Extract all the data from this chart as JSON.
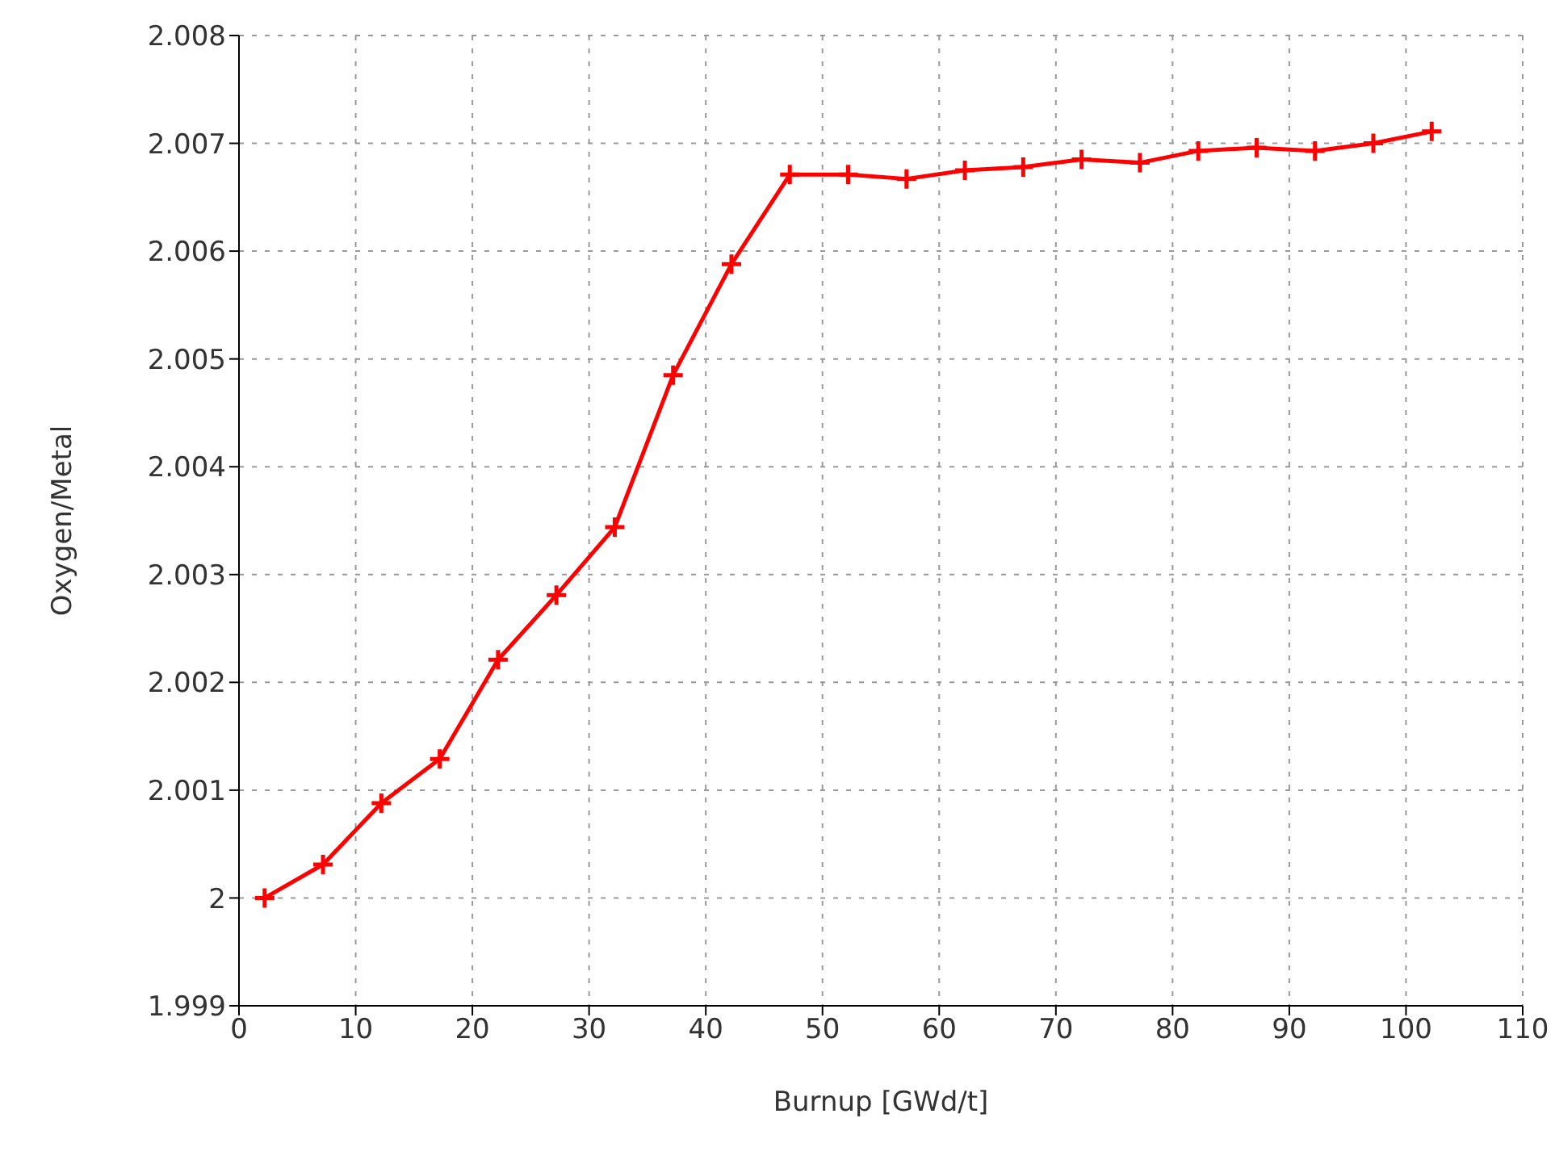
{
  "chart_data": {
    "type": "line",
    "xlabel": "Burnup [GWd/t]",
    "ylabel": "Oxygen/Metal",
    "x": [
      2.2,
      7.2,
      12.2,
      17.2,
      22.2,
      27.2,
      32.2,
      37.2,
      42.2,
      47.2,
      52.2,
      57.2,
      62.2,
      67.2,
      72.2,
      77.2,
      82.2,
      87.2,
      92.2,
      97.2,
      102.2
    ],
    "series": [
      {
        "color": "#ff0000",
        "values": [
          2.0,
          2.00031,
          2.00088,
          2.00129,
          2.00221,
          2.00281,
          2.00344,
          2.00485,
          2.00588,
          2.00671,
          2.00671,
          2.00667,
          2.00675,
          2.00678,
          2.00685,
          2.00682,
          2.00693,
          2.00696,
          2.00693,
          2.007,
          2.00711
        ]
      }
    ],
    "xlim": [
      0,
      110
    ],
    "xticks": [
      0,
      10,
      20,
      30,
      40,
      50,
      60,
      70,
      80,
      90,
      100,
      110
    ],
    "ylim": [
      1.999,
      2.008
    ],
    "yticks": [
      1.999,
      2,
      2.001,
      2.002,
      2.003,
      2.004,
      2.005,
      2.006,
      2.007,
      2.008
    ],
    "grid": true,
    "marker": "cross",
    "line_style": "solid"
  }
}
